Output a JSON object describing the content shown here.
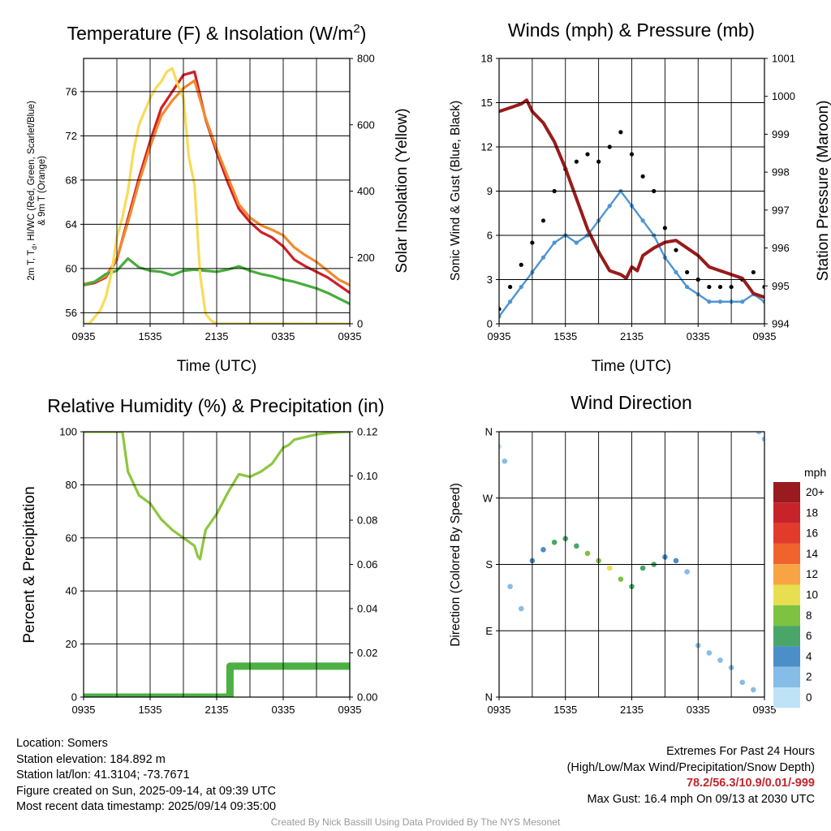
{
  "colors": {
    "red": "#cf2027",
    "orange": "#f28a2e",
    "green": "#47ad3b",
    "yellow": "#f7dc5a",
    "blue": "#4d95d1",
    "black": "#000000",
    "maroon": "#991b1b",
    "light_green": "#8dc63f",
    "precip_green": "#4cb044"
  },
  "chart_data": [
    {
      "type": "line",
      "title": "Temperature (F) & Insolation (W/m²)",
      "title_plain": "Temperature (F) & Insolation (W/m",
      "title_sup": "2",
      "title_close": ")",
      "xlabel": "Time (UTC)",
      "ylabel_left_line1_a": "2m T, T",
      "ylabel_left_line1_sub": "d",
      "ylabel_left_line1_b": ", HI/WC (Red, Green, Scarlet/Blue)",
      "ylabel_left_line2": "& 9m T (Orange)",
      "ylabel_right": "Solar Insolation (Yellow)",
      "x_tick_labels": [
        "0935",
        "1535",
        "2135",
        "0335",
        "0935"
      ],
      "x_range_hours": [
        0,
        24
      ],
      "ylim_left": [
        55,
        79
      ],
      "y_ticks_left": [
        56,
        60,
        64,
        68,
        72,
        76
      ],
      "ylim_right": [
        0,
        800
      ],
      "y_ticks_right": [
        0,
        200,
        400,
        600,
        800
      ],
      "series": [
        {
          "name": "2m T",
          "color": "#cf2027",
          "axis": "left",
          "x": [
            0,
            1,
            2,
            3,
            4,
            5,
            6,
            7,
            8,
            9,
            10,
            11,
            12,
            13,
            14,
            15,
            16,
            17,
            18,
            19,
            20,
            21,
            22,
            23,
            24
          ],
          "y": [
            58.5,
            58.7,
            59.2,
            60.8,
            64.5,
            68.2,
            71.5,
            74.5,
            76,
            77.5,
            77.8,
            73.5,
            70.5,
            67.8,
            65.4,
            64.2,
            63.3,
            62.8,
            62,
            60.8,
            60.2,
            59.7,
            59.2,
            58.5,
            57.8
          ]
        },
        {
          "name": "9m T",
          "color": "#f28a2e",
          "axis": "left",
          "x": [
            0,
            1,
            2,
            3,
            4,
            5,
            6,
            7,
            8,
            9,
            10,
            11,
            12,
            13,
            14,
            15,
            16,
            17,
            18,
            19,
            20,
            21,
            22,
            23,
            24
          ],
          "y": [
            58.6,
            58.8,
            59.3,
            60.9,
            64.2,
            67.8,
            71,
            73.8,
            75.2,
            76.3,
            77,
            73.6,
            70.8,
            68.3,
            65.8,
            64.6,
            63.9,
            63.5,
            63,
            61.9,
            61.2,
            60.6,
            59.8,
            59,
            58.5
          ]
        },
        {
          "name": "Td",
          "color": "#47ad3b",
          "axis": "left",
          "x": [
            0,
            1,
            2,
            3,
            4,
            5,
            6,
            7,
            8,
            9,
            10,
            11,
            12,
            13,
            14,
            15,
            16,
            17,
            18,
            19,
            20,
            21,
            22,
            23,
            24
          ],
          "y": [
            58.5,
            58.8,
            59.5,
            59.8,
            60.9,
            60.1,
            59.8,
            59.7,
            59.4,
            59.8,
            59.9,
            59.8,
            59.7,
            59.9,
            60.2,
            59.8,
            59.5,
            59.3,
            59,
            58.8,
            58.5,
            58.2,
            57.8,
            57.3,
            56.8
          ]
        },
        {
          "name": "Solar",
          "color": "#f7dc5a",
          "axis": "right",
          "x": [
            0,
            0.5,
            1,
            1.5,
            2,
            2.5,
            3,
            3.5,
            4,
            4.5,
            5,
            5.5,
            6,
            6.5,
            7,
            7.5,
            8,
            8.5,
            9,
            9.5,
            10,
            10.5,
            11,
            11.5,
            12,
            24
          ],
          "y": [
            0,
            0,
            20,
            40,
            80,
            150,
            260,
            320,
            400,
            520,
            600,
            640,
            680,
            710,
            730,
            760,
            770,
            720,
            680,
            500,
            420,
            150,
            30,
            10,
            0,
            0
          ]
        }
      ]
    },
    {
      "type": "scatter",
      "title": "Winds (mph) & Pressure (mb)",
      "xlabel": "Time (UTC)",
      "ylabel_left": "Sonic Wind & Gust (Blue, Black)",
      "ylabel_right": "Station Pressure (Maroon)",
      "x_tick_labels": [
        "0935",
        "1535",
        "2135",
        "0335",
        "0935"
      ],
      "x_range_hours": [
        0,
        24
      ],
      "ylim_left": [
        0,
        18
      ],
      "y_ticks_left": [
        0,
        3,
        6,
        9,
        12,
        15,
        18
      ],
      "ylim_right": [
        994,
        1001
      ],
      "y_ticks_right": [
        994,
        995,
        996,
        997,
        998,
        999,
        1000,
        1001
      ],
      "series": [
        {
          "name": "Sonic Wind",
          "color": "#4d95d1",
          "axis": "left",
          "x": [
            0,
            1,
            2,
            3,
            4,
            5,
            6,
            7,
            8,
            9,
            10,
            11,
            12,
            13,
            14,
            15,
            16,
            17,
            18,
            19,
            20,
            21,
            22,
            23,
            24
          ],
          "y": [
            0.5,
            1.5,
            2.5,
            3.5,
            4.5,
            5.5,
            6,
            5.5,
            6,
            7,
            8,
            9,
            8,
            7,
            6,
            4.5,
            3.5,
            2.5,
            2,
            1.5,
            1.5,
            1.5,
            1.5,
            2,
            1.5
          ]
        },
        {
          "name": "Gust",
          "color": "#000000",
          "axis": "left",
          "x": [
            0,
            1,
            2,
            3,
            4,
            5,
            6,
            7,
            8,
            9,
            10,
            11,
            12,
            13,
            14,
            15,
            16,
            17,
            18,
            19,
            20,
            21,
            22,
            23,
            24
          ],
          "y": [
            1,
            2.5,
            4,
            5.5,
            7,
            9,
            10.5,
            11,
            11.5,
            11,
            12,
            13,
            11.5,
            10,
            9,
            6.5,
            5,
            3.5,
            3,
            2.5,
            2.5,
            2.5,
            3,
            3.5,
            2.5
          ]
        },
        {
          "name": "Station Pressure",
          "color": "#991b1b",
          "axis": "right",
          "x": [
            0,
            1,
            2,
            2.5,
            3,
            4,
            5,
            6,
            7,
            8,
            9,
            10,
            11,
            11.5,
            12,
            12.5,
            13,
            14,
            15,
            16,
            17,
            18,
            19,
            20,
            21,
            22,
            23,
            24
          ],
          "y": [
            999.6,
            999.7,
            999.8,
            999.9,
            999.6,
            999.3,
            998.8,
            998.1,
            997.3,
            996.5,
            995.9,
            995.4,
            995.3,
            995.2,
            995.5,
            995.4,
            995.8,
            996,
            996.15,
            996.2,
            996,
            995.8,
            995.5,
            995.4,
            995.3,
            995.2,
            994.8,
            994.7
          ]
        }
      ]
    },
    {
      "type": "line",
      "title": "Relative Humidity (%) & Precipitation (in)",
      "xlabel": "",
      "ylabel_left": "Percent & Precipitation",
      "x_tick_labels": [
        "0935",
        "1535",
        "2135",
        "0335",
        "0935"
      ],
      "x_range_hours": [
        0,
        24
      ],
      "ylim_left": [
        0,
        100
      ],
      "y_ticks_left": [
        0,
        20,
        40,
        60,
        80,
        100
      ],
      "ylim_right": [
        0,
        0.12
      ],
      "y_ticks_right_labels": [
        "0.00",
        "0.02",
        "0.04",
        "0.06",
        "0.08",
        "0.10",
        "0.12"
      ],
      "series": [
        {
          "name": "Relative Humidity",
          "color": "#8dc63f",
          "axis": "left",
          "x": [
            0,
            3.5,
            4,
            5,
            6,
            7,
            8,
            9,
            10,
            10.3,
            10.5,
            11,
            12,
            13,
            14,
            15,
            16,
            17,
            18,
            18.5,
            19,
            20,
            21,
            22,
            23,
            24
          ],
          "y": [
            100,
            100,
            85,
            76,
            73,
            67,
            63,
            60,
            57,
            53,
            52,
            63,
            69,
            77,
            84,
            83,
            85,
            88,
            94,
            95,
            97,
            98,
            99,
            99.5,
            99.8,
            100
          ]
        },
        {
          "name": "Precipitation",
          "color": "#4cb044",
          "axis": "right",
          "x": [
            0,
            13.2,
            13.2,
            24
          ],
          "y": [
            0,
            0,
            0.014,
            0.014
          ]
        }
      ]
    },
    {
      "type": "scatter",
      "title": "Wind Direction",
      "xlabel": "",
      "ylabel_left": "Direction (Colored By Speed)",
      "x_tick_labels": [
        "0935",
        "1535",
        "2135",
        "0335",
        "0935"
      ],
      "x_range_hours": [
        0,
        24
      ],
      "y_tick_labels": [
        "N",
        "E",
        "S",
        "W",
        "N"
      ],
      "ylim_degrees": [
        0,
        360
      ],
      "colorbar": {
        "title": "mph",
        "labels": [
          "20+",
          "18",
          "16",
          "14",
          "12",
          "10",
          "8",
          "6",
          "4",
          "2",
          "0"
        ],
        "colors": [
          "#991a1f",
          "#c8232a",
          "#e23b2c",
          "#f1632d",
          "#f8a445",
          "#e7df50",
          "#7fc241",
          "#4aa668",
          "#4b8ec8",
          "#86bde6",
          "#bfe3f6"
        ]
      },
      "series": [
        {
          "name": "Direction",
          "axis": "left",
          "x": [
            0,
            0.5,
            1,
            2,
            3,
            4,
            5,
            6,
            7,
            8,
            9,
            10,
            11,
            12,
            13,
            14,
            15,
            16,
            17,
            18,
            19,
            20,
            21,
            22,
            23,
            23.5,
            24
          ],
          "y": [
            340,
            320,
            150,
            120,
            185,
            200,
            210,
            215,
            205,
            195,
            185,
            175,
            160,
            150,
            175,
            180,
            190,
            185,
            170,
            70,
            60,
            50,
            40,
            20,
            10,
            360,
            350
          ],
          "speed": [
            0.5,
            1,
            1.5,
            2,
            3,
            4,
            5,
            6,
            6,
            7,
            8,
            9,
            7,
            5,
            5,
            5,
            4,
            3,
            2,
            1.5,
            1,
            1,
            1,
            1,
            1.5,
            1,
            1
          ]
        }
      ]
    }
  ],
  "footer": {
    "location": "Location: Somers",
    "elevation": "Station elevation: 184.892 m",
    "latlon": "Station lat/lon: 41.3104; -73.7671",
    "created": "Figure created on Sun, 2025-09-14, at 09:39 UTC",
    "recent": "Most recent data timestamp: 2025/09/14 09:35:00",
    "extremes_title": "Extremes For Past 24 Hours",
    "extremes_subtitle": "(High/Low/Max Wind/Precipitation/Snow Depth)",
    "extremes_values": "78.2/56.3/10.9/0.01/-999",
    "max_gust": "Max Gust: 16.4 mph On 09/13 at 2030 UTC",
    "credit": "Created By Nick Bassill Using Data Provided By The NYS Mesonet"
  }
}
